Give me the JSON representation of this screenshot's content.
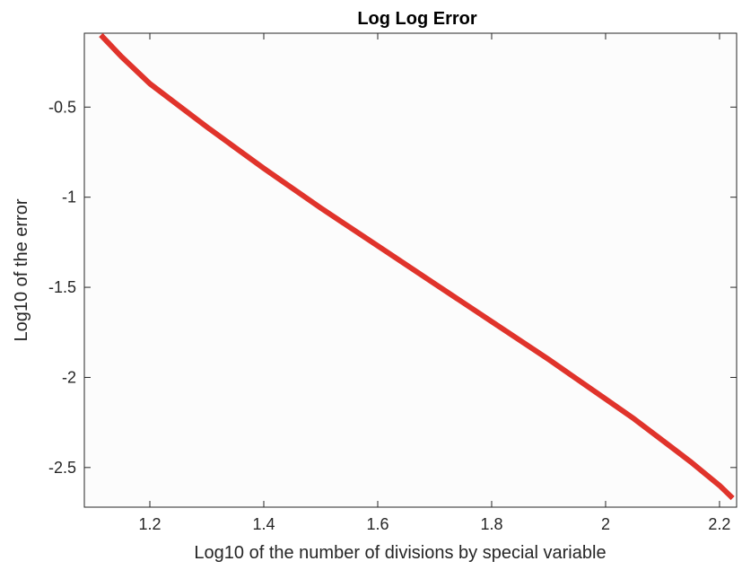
{
  "chart_data": {
    "type": "line",
    "title": "Log Log Error",
    "xlabel": "Log10 of the number of divisions by special variable",
    "ylabel": "Log10 of the error",
    "xlim": [
      1.085,
      2.23
    ],
    "ylim": [
      -2.72,
      -0.09
    ],
    "xticks": [
      1.2,
      1.4,
      1.6,
      1.8,
      2.0,
      2.2
    ],
    "xtick_labels": [
      "1.2",
      "1.4",
      "1.6",
      "1.8",
      "2",
      "2.2"
    ],
    "yticks": [
      -2.5,
      -2.0,
      -1.5,
      -1.0,
      -0.5
    ],
    "ytick_labels": [
      "-2.5",
      "-2",
      "-1.5",
      "-1",
      "-0.5"
    ],
    "grid": false,
    "series": [
      {
        "color": "#e0332b",
        "x": [
          1.114,
          1.15,
          1.2,
          1.3,
          1.4,
          1.5,
          1.6,
          1.7,
          1.8,
          1.9,
          2.0,
          2.05,
          2.1,
          2.15,
          2.2,
          2.223
        ],
        "y": [
          -0.1,
          -0.22,
          -0.37,
          -0.61,
          -0.84,
          -1.06,
          -1.27,
          -1.48,
          -1.69,
          -1.9,
          -2.12,
          -2.23,
          -2.35,
          -2.47,
          -2.6,
          -2.67
        ]
      }
    ]
  }
}
